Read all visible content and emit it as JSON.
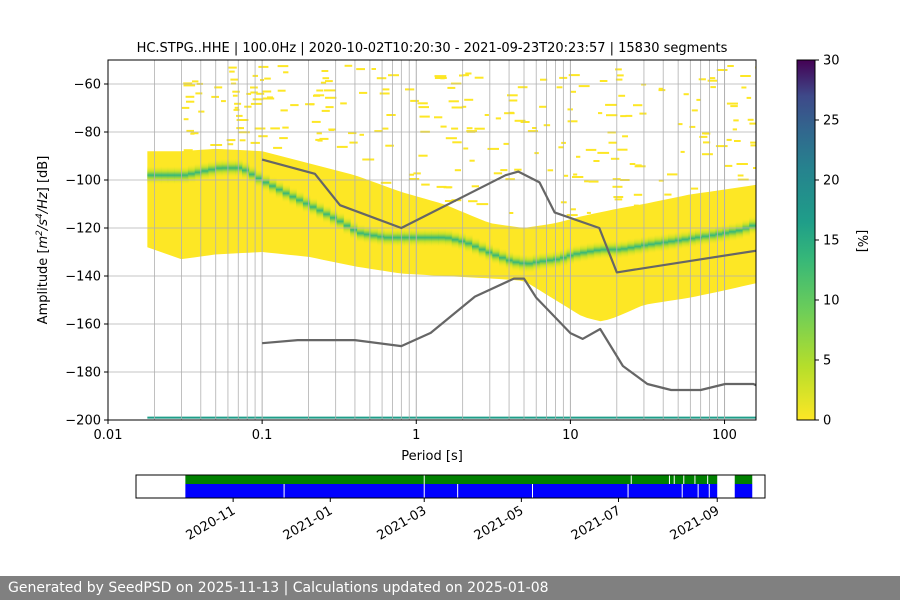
{
  "chart_data": [
    {
      "type": "heatmap",
      "title": "HC.STPG..HHE | 100.0Hz | 2020-10-02T10:20:30 - 2021-09-23T20:23:57 | 15830 segments",
      "xlabel": "Period [s]",
      "ylabel_parts": [
        "Amplitude [",
        "m",
        "2",
        "/s",
        "4",
        "/Hz",
        "] [dB]"
      ],
      "xscale": "log",
      "xlim": [
        0.01,
        160
      ],
      "ylim": [
        -200,
        -50
      ],
      "x_ticks": [
        0.01,
        0.1,
        1,
        10,
        100
      ],
      "x_tick_labels": [
        "0.01",
        "0.1",
        "1",
        "10",
        "100"
      ],
      "y_ticks": [
        -200,
        -180,
        -160,
        -140,
        -120,
        -100,
        -80,
        -60
      ],
      "y_tick_labels": [
        "−200",
        "−180",
        "−160",
        "−140",
        "−120",
        "−100",
        "−80",
        "−60"
      ],
      "grid": true,
      "colorbar": {
        "label": "[%]",
        "range": [
          0,
          30
        ],
        "ticks": [
          0,
          5,
          10,
          15,
          20,
          25,
          30
        ],
        "tick_labels": [
          "0",
          "5",
          "10",
          "15",
          "20",
          "25",
          "30"
        ],
        "colormap": "viridis"
      },
      "density_mode": {
        "period": [
          0.018,
          0.03,
          0.05,
          0.07,
          0.1,
          0.15,
          0.2,
          0.3,
          0.4,
          0.6,
          0.8,
          1.0,
          1.5,
          2,
          3,
          4,
          5,
          6,
          8,
          10,
          15,
          20,
          30,
          50,
          80,
          120,
          160
        ],
        "db": [
          -98,
          -98,
          -95,
          -95,
          -101,
          -107,
          -111,
          -117,
          -122,
          -124,
          -124,
          -124,
          -124,
          -126,
          -131,
          -134,
          -135,
          -134,
          -133,
          -131,
          -129,
          -129,
          -127,
          -125,
          -123,
          -121,
          -118
        ]
      },
      "density_upper": {
        "period": [
          0.018,
          0.03,
          0.05,
          0.1,
          0.2,
          0.4,
          0.8,
          1.5,
          3,
          5,
          8,
          12,
          20,
          30,
          60,
          100,
          160
        ],
        "db": [
          -88,
          -88,
          -87,
          -88,
          -93,
          -98,
          -105,
          -110,
          -118,
          -120,
          -118,
          -115,
          -112,
          -110,
          -106,
          -104,
          -102
        ]
      },
      "density_lower": {
        "period": [
          0.018,
          0.03,
          0.05,
          0.1,
          0.2,
          0.4,
          0.8,
          1.5,
          3,
          5,
          8,
          12,
          16,
          20,
          30,
          60,
          100,
          160
        ],
        "db": [
          -128,
          -133,
          -131,
          -130,
          -132,
          -136,
          -139,
          -140,
          -141,
          -142,
          -150,
          -157,
          -159,
          -157,
          -152,
          -149,
          -146,
          -143
        ]
      },
      "spurious_level": -199,
      "series": [
        {
          "name": "NHNM",
          "color": "#666666",
          "period": [
            0.1,
            0.22,
            0.32,
            0.8,
            3.8,
            4.6,
            6.3,
            7.9,
            15.4,
            20,
            354.8
          ],
          "db": [
            -91.5,
            -97.4,
            -110.5,
            -120,
            -98,
            -96.5,
            -101,
            -113.5,
            -120,
            -138.5,
            -126
          ]
        },
        {
          "name": "NLNM",
          "color": "#666666",
          "period": [
            0.1,
            0.17,
            0.4,
            0.8,
            1.24,
            2.4,
            4.3,
            5.0,
            6.0,
            10.0,
            12.0,
            15.6,
            21.9,
            31.6,
            45,
            70,
            101,
            154,
            160
          ],
          "db": [
            -168,
            -166.7,
            -166.7,
            -169.2,
            -163.7,
            -148.6,
            -141.1,
            -141.1,
            -149,
            -163.8,
            -166.2,
            -162.1,
            -177.5,
            -185,
            -187.5,
            -187.5,
            -185,
            -185,
            -185.5
          ]
        }
      ]
    },
    {
      "type": "timeline",
      "x_ticks": [
        "2020-11",
        "2021-01",
        "2021-03",
        "2021-05",
        "2021-07",
        "2021-09"
      ],
      "range": [
        "2020-09-01",
        "2021-10-01"
      ],
      "data_span": [
        "2020-10-02",
        "2021-09-23"
      ],
      "gap": [
        "2021-09-01",
        "2021-09-12"
      ],
      "top_color": "#008000",
      "bottom_color": "#0000ff",
      "top_breaks": [
        "2021-03-01",
        "2021-07-09",
        "2021-08-02",
        "2021-08-05",
        "2021-08-11",
        "2021-08-18",
        "2021-08-26"
      ],
      "bottom_breaks": [
        "2020-12-03",
        "2021-03-01",
        "2021-03-22",
        "2021-05-08",
        "2021-07-07",
        "2021-08-10",
        "2021-08-20",
        "2021-08-27"
      ]
    }
  ],
  "footer": "Generated by SeedPSD on 2025-11-13 | Calculations updated on 2025-01-08"
}
